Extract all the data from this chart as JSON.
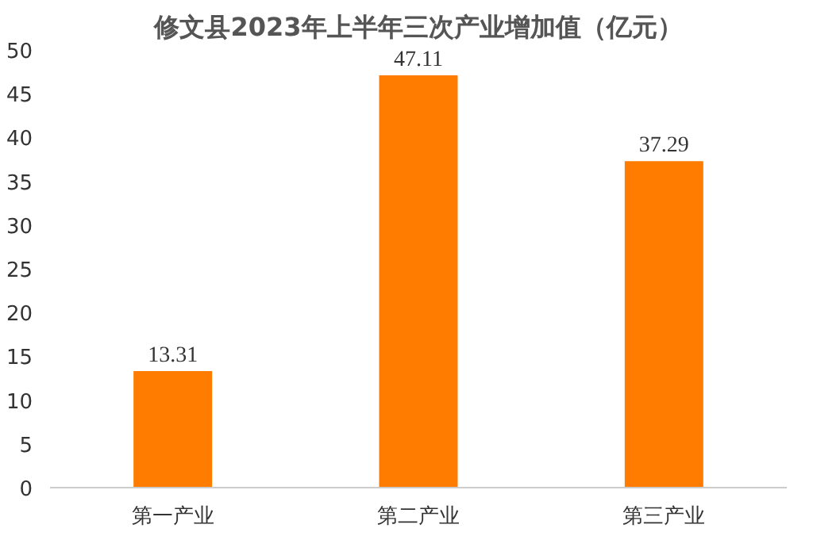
{
  "chart_data": {
    "type": "bar",
    "title": "修文县2023年上半年三次产业增加值（亿元）",
    "categories": [
      "第一产业",
      "第二产业",
      "第三产业"
    ],
    "values": [
      13.31,
      47.11,
      37.29
    ],
    "color": "#ff7c00",
    "ylim": [
      0,
      50
    ],
    "yticks": [
      0,
      5,
      10,
      15,
      20,
      25,
      30,
      35,
      40,
      45,
      50
    ],
    "data_labels": true,
    "grid": false
  }
}
